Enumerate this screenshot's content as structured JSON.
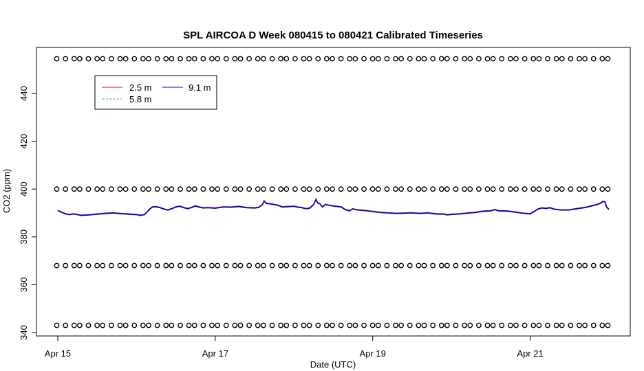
{
  "chart_data": {
    "type": "line",
    "title": "SPL AIRCOA D  Week 080415 to 080421  Calibrated Timeseries",
    "xlabel": "Date (UTC)",
    "ylabel": "CO2 (ppm)",
    "x_range_days": [
      0,
      7
    ],
    "ylim": [
      340,
      454
    ],
    "x_ticks": [
      {
        "day": 0,
        "label": "Apr 15"
      },
      {
        "day": 2,
        "label": "Apr 17"
      },
      {
        "day": 4,
        "label": "Apr 19"
      },
      {
        "day": 6,
        "label": "Apr 21"
      }
    ],
    "y_ticks": [
      340,
      360,
      380,
      400,
      420,
      440
    ],
    "legend_position": "top-left",
    "grid": false,
    "series": [
      {
        "name": "2.5 m",
        "color": "#ff0000"
      },
      {
        "name": "5.8 m",
        "color": "#00aa00"
      },
      {
        "name": "9.1 m",
        "color": "#0000dd"
      }
    ],
    "line_points": [
      [
        0.0,
        391.0
      ],
      [
        0.05,
        390.3
      ],
      [
        0.1,
        389.6
      ],
      [
        0.15,
        389.3
      ],
      [
        0.2,
        389.6
      ],
      [
        0.25,
        389.3
      ],
      [
        0.3,
        389.0
      ],
      [
        0.4,
        389.2
      ],
      [
        0.5,
        389.5
      ],
      [
        0.6,
        389.8
      ],
      [
        0.7,
        390.0
      ],
      [
        0.8,
        389.7
      ],
      [
        0.9,
        389.5
      ],
      [
        1.0,
        389.3
      ],
      [
        1.05,
        389.0
      ],
      [
        1.1,
        389.3
      ],
      [
        1.15,
        391.0
      ],
      [
        1.2,
        392.5
      ],
      [
        1.25,
        392.6
      ],
      [
        1.3,
        392.2
      ],
      [
        1.35,
        391.6
      ],
      [
        1.4,
        391.2
      ],
      [
        1.45,
        391.8
      ],
      [
        1.5,
        392.5
      ],
      [
        1.55,
        392.8
      ],
      [
        1.6,
        392.2
      ],
      [
        1.65,
        391.8
      ],
      [
        1.7,
        392.3
      ],
      [
        1.75,
        392.9
      ],
      [
        1.8,
        392.4
      ],
      [
        1.85,
        392.1
      ],
      [
        1.9,
        392.2
      ],
      [
        2.0,
        392.0
      ],
      [
        2.1,
        392.5
      ],
      [
        2.2,
        392.4
      ],
      [
        2.3,
        392.7
      ],
      [
        2.4,
        392.2
      ],
      [
        2.5,
        392.1
      ],
      [
        2.55,
        392.3
      ],
      [
        2.6,
        393.5
      ],
      [
        2.62,
        395.0
      ],
      [
        2.65,
        394.0
      ],
      [
        2.7,
        393.8
      ],
      [
        2.8,
        393.2
      ],
      [
        2.85,
        392.5
      ],
      [
        2.9,
        392.6
      ],
      [
        3.0,
        392.8
      ],
      [
        3.05,
        392.4
      ],
      [
        3.1,
        392.2
      ],
      [
        3.15,
        391.8
      ],
      [
        3.2,
        392.0
      ],
      [
        3.25,
        393.5
      ],
      [
        3.28,
        395.7
      ],
      [
        3.3,
        394.2
      ],
      [
        3.33,
        393.8
      ],
      [
        3.36,
        392.5
      ],
      [
        3.4,
        393.5
      ],
      [
        3.45,
        393.2
      ],
      [
        3.5,
        392.9
      ],
      [
        3.55,
        392.7
      ],
      [
        3.6,
        392.5
      ],
      [
        3.65,
        391.4
      ],
      [
        3.7,
        390.9
      ],
      [
        3.75,
        391.7
      ],
      [
        3.8,
        391.3
      ],
      [
        3.9,
        391.0
      ],
      [
        4.0,
        390.6
      ],
      [
        4.1,
        390.2
      ],
      [
        4.2,
        390.0
      ],
      [
        4.3,
        389.8
      ],
      [
        4.4,
        389.9
      ],
      [
        4.5,
        390.0
      ],
      [
        4.6,
        389.8
      ],
      [
        4.7,
        390.0
      ],
      [
        4.8,
        389.6
      ],
      [
        4.9,
        389.5
      ],
      [
        4.95,
        389.2
      ],
      [
        5.0,
        389.4
      ],
      [
        5.1,
        389.6
      ],
      [
        5.2,
        389.9
      ],
      [
        5.3,
        390.2
      ],
      [
        5.4,
        390.7
      ],
      [
        5.5,
        390.9
      ],
      [
        5.55,
        391.4
      ],
      [
        5.6,
        390.9
      ],
      [
        5.7,
        390.8
      ],
      [
        5.8,
        390.4
      ],
      [
        5.9,
        389.9
      ],
      [
        6.0,
        389.6
      ],
      [
        6.05,
        390.6
      ],
      [
        6.1,
        391.6
      ],
      [
        6.15,
        392.1
      ],
      [
        6.2,
        391.9
      ],
      [
        6.25,
        392.2
      ],
      [
        6.3,
        391.6
      ],
      [
        6.4,
        391.2
      ],
      [
        6.5,
        391.3
      ],
      [
        6.6,
        391.8
      ],
      [
        6.7,
        392.3
      ],
      [
        6.8,
        393.1
      ],
      [
        6.85,
        393.5
      ],
      [
        6.9,
        394.2
      ],
      [
        6.92,
        394.8
      ],
      [
        6.95,
        394.6
      ],
      [
        6.97,
        392.5
      ],
      [
        7.0,
        391.5
      ]
    ],
    "rows_of_o_marks_y": [
      454.5,
      400.0,
      368.0,
      343.0
    ]
  }
}
